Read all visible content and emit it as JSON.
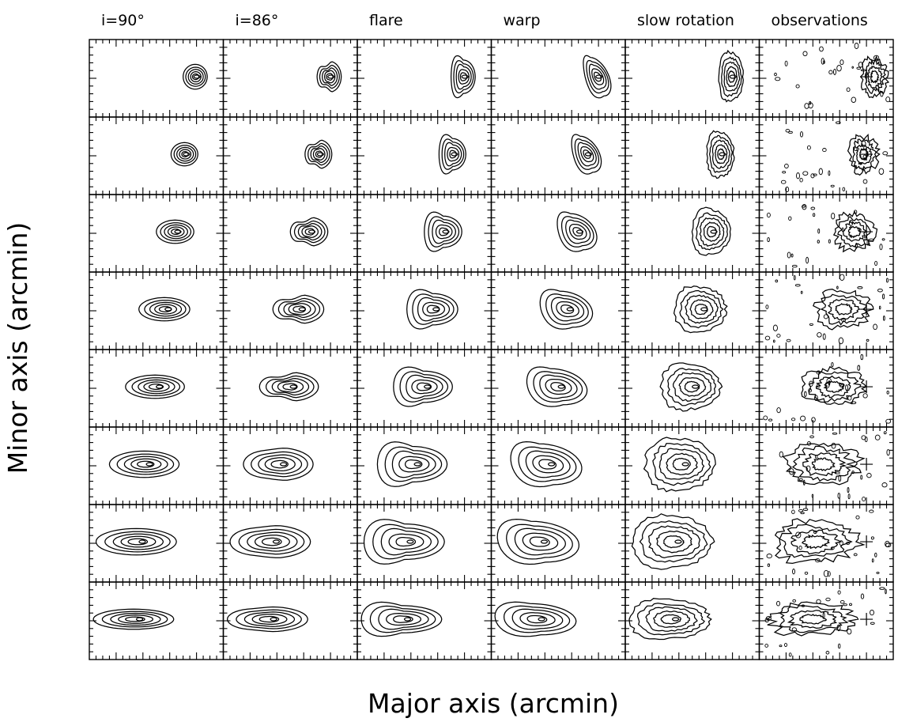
{
  "chart_data": {
    "type": "contour-grid",
    "xlabel": "Major axis (arcmin)",
    "ylabel": "Minor axis (arcmin)",
    "columns": [
      {
        "title": "i=90°",
        "kind": "model"
      },
      {
        "title": "i=86°",
        "kind": "model"
      },
      {
        "title": "flare",
        "kind": "model"
      },
      {
        "title": "warp",
        "kind": "model"
      },
      {
        "title": "slow rotation",
        "kind": "model"
      },
      {
        "title": "observations",
        "kind": "data"
      }
    ],
    "rows": 8,
    "contour_levels": 5,
    "observation_marker": "cross"
  }
}
